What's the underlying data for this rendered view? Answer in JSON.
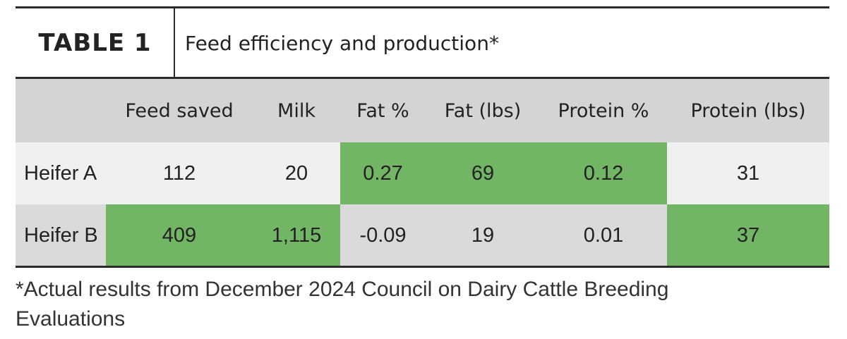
{
  "header": {
    "title": "TABLE 1",
    "subtitle": "Feed efficiency and production*"
  },
  "table": {
    "columns": [
      "",
      "Feed saved",
      "Milk",
      "Fat %",
      "Fat (lbs)",
      "Protein %",
      "Protein (lbs)"
    ],
    "rows": [
      [
        "Heifer A",
        "112",
        "20",
        "0.27",
        "69",
        "0.12",
        "31"
      ],
      [
        "Heifer B",
        "409",
        "1,115",
        "-0.09",
        "19",
        "0.01",
        "37"
      ]
    ]
  },
  "footnote": "*Actual results from December 2024 Council on Dairy Cattle Breeding Evaluations"
}
